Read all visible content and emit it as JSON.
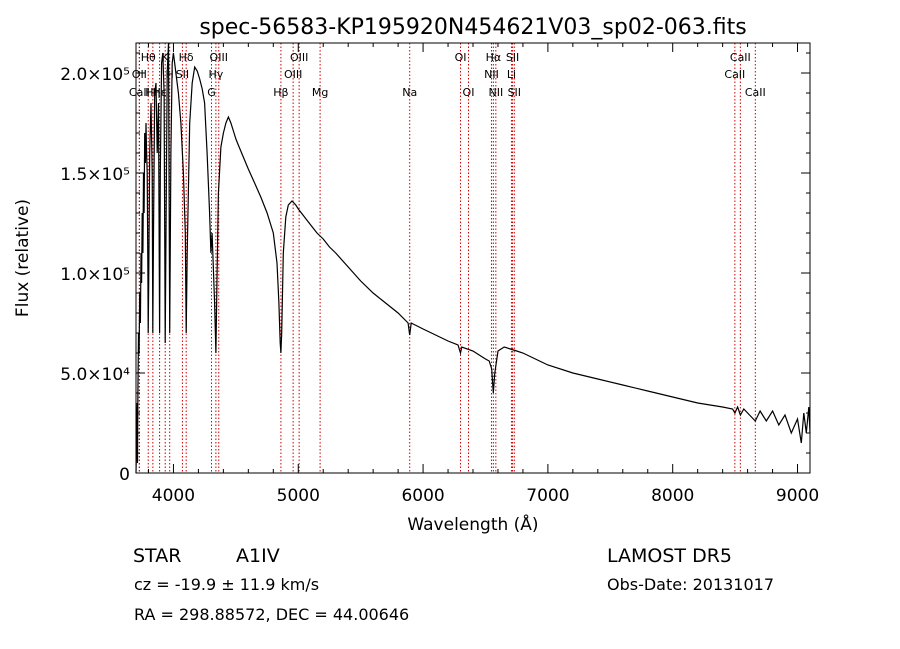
{
  "chart_data": {
    "type": "line",
    "title": "spec-56583-KP195920N454621V03_sp02-063.fits",
    "xlabel": "Wavelength (Å)",
    "ylabel": "Flux (relative)",
    "xlim": [
      3700,
      9100
    ],
    "ylim": [
      0,
      215000
    ],
    "x_ticks": [
      {
        "value": 4000,
        "label": "4000"
      },
      {
        "value": 5000,
        "label": "5000"
      },
      {
        "value": 6000,
        "label": "6000"
      },
      {
        "value": 7000,
        "label": "7000"
      },
      {
        "value": 8000,
        "label": "8000"
      },
      {
        "value": 9000,
        "label": "9000"
      }
    ],
    "y_ticks": [
      {
        "value": 0,
        "label": "0"
      },
      {
        "value": 50000,
        "label": "5.0×10⁴"
      },
      {
        "value": 100000,
        "label": "1.0×10⁵"
      },
      {
        "value": 150000,
        "label": "1.5×10⁵"
      },
      {
        "value": 200000,
        "label": "2.0×10⁵"
      }
    ],
    "line_markers": [
      {
        "label": "Hθ",
        "wavelength": 3798,
        "row": 0
      },
      {
        "label": "K",
        "wavelength": 3934,
        "row": 0
      },
      {
        "label": "Hδ",
        "wavelength": 4102,
        "row": 0
      },
      {
        "label": "OIII",
        "wavelength": 4363,
        "row": 0
      },
      {
        "label": "OIII",
        "wavelength": 5007,
        "row": 0
      },
      {
        "label": "OI",
        "wavelength": 6300,
        "row": 0
      },
      {
        "label": "Hα",
        "wavelength": 6563,
        "row": 0
      },
      {
        "label": "SII",
        "wavelength": 6717,
        "row": 0
      },
      {
        "label": "CaII",
        "wavelength": 8542,
        "row": 0
      },
      {
        "label": "OII",
        "wavelength": 3727,
        "row": 1
      },
      {
        "label": "H",
        "wavelength": 3970,
        "row": 1
      },
      {
        "label": "SII",
        "wavelength": 4072,
        "row": 1
      },
      {
        "label": "Hγ",
        "wavelength": 4340,
        "row": 1
      },
      {
        "label": "OIII",
        "wavelength": 4959,
        "row": 1
      },
      {
        "label": "NII",
        "wavelength": 6548,
        "row": 1
      },
      {
        "label": "Li",
        "wavelength": 6708,
        "row": 1
      },
      {
        "label": "CaII",
        "wavelength": 8498,
        "row": 1
      },
      {
        "label": "CaII",
        "wavelength": 3727,
        "row": 2
      },
      {
        "label": "Hη",
        "wavelength": 3835,
        "row": 2
      },
      {
        "label": "Hε",
        "wavelength": 3889,
        "row": 2
      },
      {
        "label": "G",
        "wavelength": 4305,
        "row": 2
      },
      {
        "label": "Hβ",
        "wavelength": 4861,
        "row": 2
      },
      {
        "label": "Mg",
        "wavelength": 5175,
        "row": 2
      },
      {
        "label": "Na",
        "wavelength": 5893,
        "row": 2
      },
      {
        "label": "OI",
        "wavelength": 6364,
        "row": 2
      },
      {
        "label": "NII",
        "wavelength": 6583,
        "row": 2
      },
      {
        "label": "SII",
        "wavelength": 6731,
        "row": 2
      },
      {
        "label": "CaII",
        "wavelength": 8662,
        "row": 2
      }
    ],
    "series": [
      {
        "x": [
          3700,
          3705,
          3710,
          3712,
          3715,
          3720,
          3725,
          3730,
          3735,
          3740,
          3745,
          3750,
          3755,
          3760,
          3765,
          3770,
          3775,
          3780,
          3785,
          3790,
          3795,
          3798,
          3802,
          3810,
          3820,
          3830,
          3835,
          3840,
          3850,
          3860,
          3870,
          3880,
          3889,
          3895,
          3905,
          3915,
          3925,
          3934,
          3940,
          3950,
          3960,
          3970,
          3980,
          3990,
          4000,
          4020,
          4040,
          4060,
          4080,
          4095,
          4102,
          4110,
          4130,
          4150,
          4170,
          4190,
          4210,
          4230,
          4250,
          4270,
          4290,
          4300,
          4310,
          4330,
          4340,
          4350,
          4360,
          4380,
          4400,
          4420,
          4440,
          4460,
          4480,
          4500,
          4520,
          4560,
          4600,
          4650,
          4700,
          4750,
          4800,
          4830,
          4845,
          4855,
          4861,
          4867,
          4880,
          4900,
          4920,
          4950,
          4980,
          5000,
          5050,
          5100,
          5150,
          5200,
          5250,
          5300,
          5400,
          5500,
          5600,
          5700,
          5800,
          5880,
          5893,
          5905,
          6000,
          6100,
          6200,
          6280,
          6300,
          6310,
          6400,
          6450,
          6500,
          6530,
          6550,
          6563,
          6575,
          6600,
          6650,
          6700,
          6750,
          6800,
          6900,
          7000,
          7200,
          7400,
          7600,
          7800,
          8000,
          8200,
          8400,
          8480,
          8498,
          8520,
          8542,
          8570,
          8600,
          8662,
          8700,
          8750,
          8800,
          8850,
          8900,
          8950,
          9000,
          9030,
          9050,
          9070,
          9090,
          9100
        ],
        "y": [
          0,
          15000,
          35000,
          5000,
          40000,
          70000,
          60000,
          90000,
          75000,
          110000,
          95000,
          130000,
          110000,
          150000,
          130000,
          170000,
          155000,
          175000,
          160000,
          150000,
          100000,
          70000,
          95000,
          160000,
          185000,
          150000,
          70000,
          120000,
          190000,
          195000,
          160000,
          185000,
          70000,
          150000,
          205000,
          210000,
          190000,
          65000,
          120000,
          200000,
          215000,
          70000,
          160000,
          205000,
          210000,
          200000,
          190000,
          175000,
          150000,
          120000,
          70000,
          110000,
          175000,
          195000,
          203000,
          201000,
          197000,
          192000,
          185000,
          160000,
          130000,
          110000,
          120000,
          85000,
          60000,
          100000,
          140000,
          163000,
          170000,
          175000,
          178000,
          175000,
          171000,
          167000,
          164000,
          158000,
          152000,
          145000,
          138000,
          130000,
          120000,
          105000,
          85000,
          65000,
          60000,
          70000,
          110000,
          128000,
          134000,
          136000,
          134000,
          132000,
          128000,
          124000,
          120000,
          117000,
          113000,
          110000,
          103000,
          96000,
          90000,
          85000,
          80000,
          75000,
          69000,
          75000,
          72000,
          69000,
          66000,
          64000,
          60000,
          63000,
          61000,
          59000,
          57000,
          56000,
          52000,
          40000,
          50000,
          61000,
          63000,
          62000,
          61000,
          60000,
          57000,
          54000,
          50000,
          47000,
          44000,
          41000,
          38000,
          35000,
          33000,
          32000,
          30000,
          33000,
          29000,
          32000,
          30000,
          26000,
          31000,
          26000,
          31000,
          24000,
          29000,
          20000,
          27000,
          15000,
          30000,
          20000,
          33000,
          20000
        ]
      }
    ],
    "notes": {
      "class_label": "STAR",
      "subclass": "A1IV",
      "cz": "cz = -19.9 ± 11.9 km/s",
      "coords": "RA = 298.88572, DEC =  44.00646",
      "survey": "LAMOST DR5",
      "obs_date": "Obs-Date: 20131017"
    }
  }
}
